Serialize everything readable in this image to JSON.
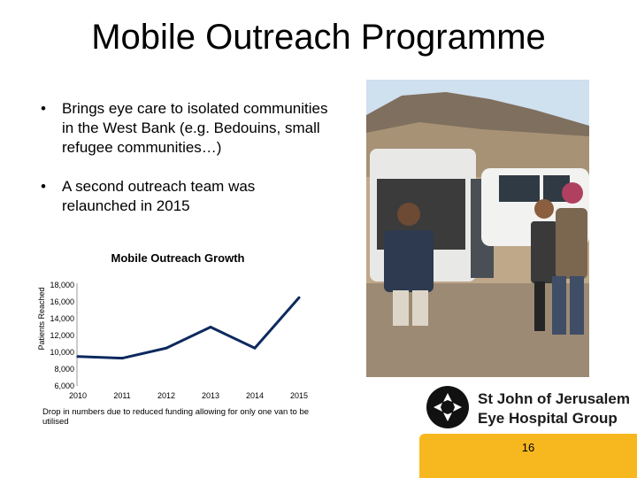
{
  "slide": {
    "title": "Mobile Outreach Programme",
    "bullets": [
      "Brings eye care to isolated communities in the West Bank (e.g. Bedouins, small refugee communities…)",
      "A second outreach team was relaunched in 2015"
    ],
    "bullet_marker": "•",
    "note": "Drop in numbers due to reduced funding allowing for only one van to be utilised",
    "logo_line1": "St John of Jerusalem",
    "logo_line2": "Eye Hospital Group",
    "page_number": "16",
    "footer_color": "#f7b81f"
  },
  "chart_data": {
    "type": "line",
    "title": "Mobile Outreach Growth",
    "xlabel": "",
    "ylabel": "Patients Reached",
    "x": [
      "2010",
      "2011",
      "2012",
      "2013",
      "2014",
      "2015"
    ],
    "series": [
      {
        "values": [
          9500,
          9300,
          10500,
          13000,
          10500,
          16500
        ]
      }
    ],
    "y_ticks": [
      "6,000",
      "8,000",
      "10,000",
      "12,000",
      "14,000",
      "16,000",
      "18,000"
    ],
    "ylim": [
      6000,
      18000
    ],
    "grid": false,
    "line_color": "#0d2a5e"
  }
}
